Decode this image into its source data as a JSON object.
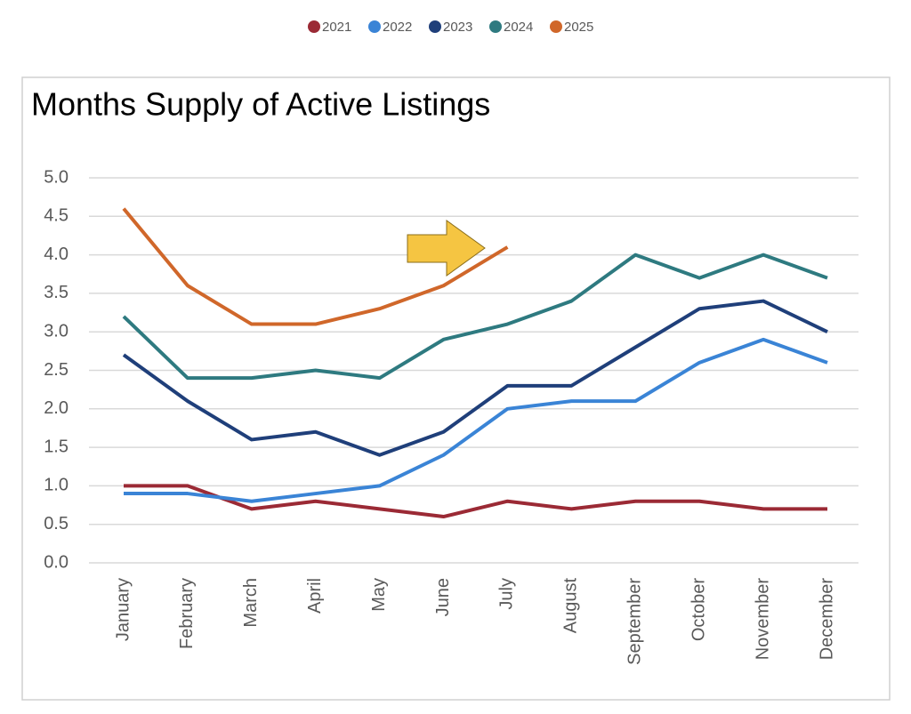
{
  "chart_data": {
    "type": "line",
    "title": "Months Supply of Active Listings",
    "categories": [
      "January",
      "February",
      "March",
      "April",
      "May",
      "June",
      "July",
      "August",
      "September",
      "October",
      "November",
      "December"
    ],
    "series": [
      {
        "name": "2021",
        "color": "#9b2a35",
        "values": [
          1.0,
          1.0,
          0.7,
          0.8,
          0.7,
          0.6,
          0.8,
          0.7,
          0.8,
          0.8,
          0.7,
          0.7
        ]
      },
      {
        "name": "2022",
        "color": "#3a84d6",
        "values": [
          0.9,
          0.9,
          0.8,
          0.9,
          1.0,
          1.4,
          2.0,
          2.1,
          2.1,
          2.6,
          2.9,
          2.6
        ]
      },
      {
        "name": "2023",
        "color": "#1f3f7a",
        "values": [
          2.7,
          2.1,
          1.6,
          1.7,
          1.4,
          1.7,
          2.3,
          2.3,
          2.8,
          3.3,
          3.4,
          3.0
        ]
      },
      {
        "name": "2024",
        "color": "#2e7a80",
        "values": [
          3.2,
          2.4,
          2.4,
          2.5,
          2.4,
          2.9,
          3.1,
          3.4,
          4.0,
          3.7,
          4.0,
          3.7
        ]
      },
      {
        "name": "2025",
        "color": "#d0672a",
        "values": [
          4.6,
          3.6,
          3.1,
          3.1,
          3.3,
          3.6,
          4.1,
          null,
          null,
          null,
          null,
          null
        ]
      }
    ],
    "ylim": [
      0,
      5
    ],
    "yticks": [
      {
        "value": 0,
        "label": "0.0"
      },
      0.5,
      {
        "value": 1,
        "label": "1.0"
      },
      1.5,
      {
        "value": 2,
        "label": "2.0"
      },
      2.5,
      {
        "value": 3,
        "label": "3.0"
      },
      3.5,
      {
        "value": 4,
        "label": "4.0"
      },
      4.5,
      {
        "value": 5,
        "label": "5.0"
      }
    ],
    "grid": true,
    "legend": "top"
  }
}
